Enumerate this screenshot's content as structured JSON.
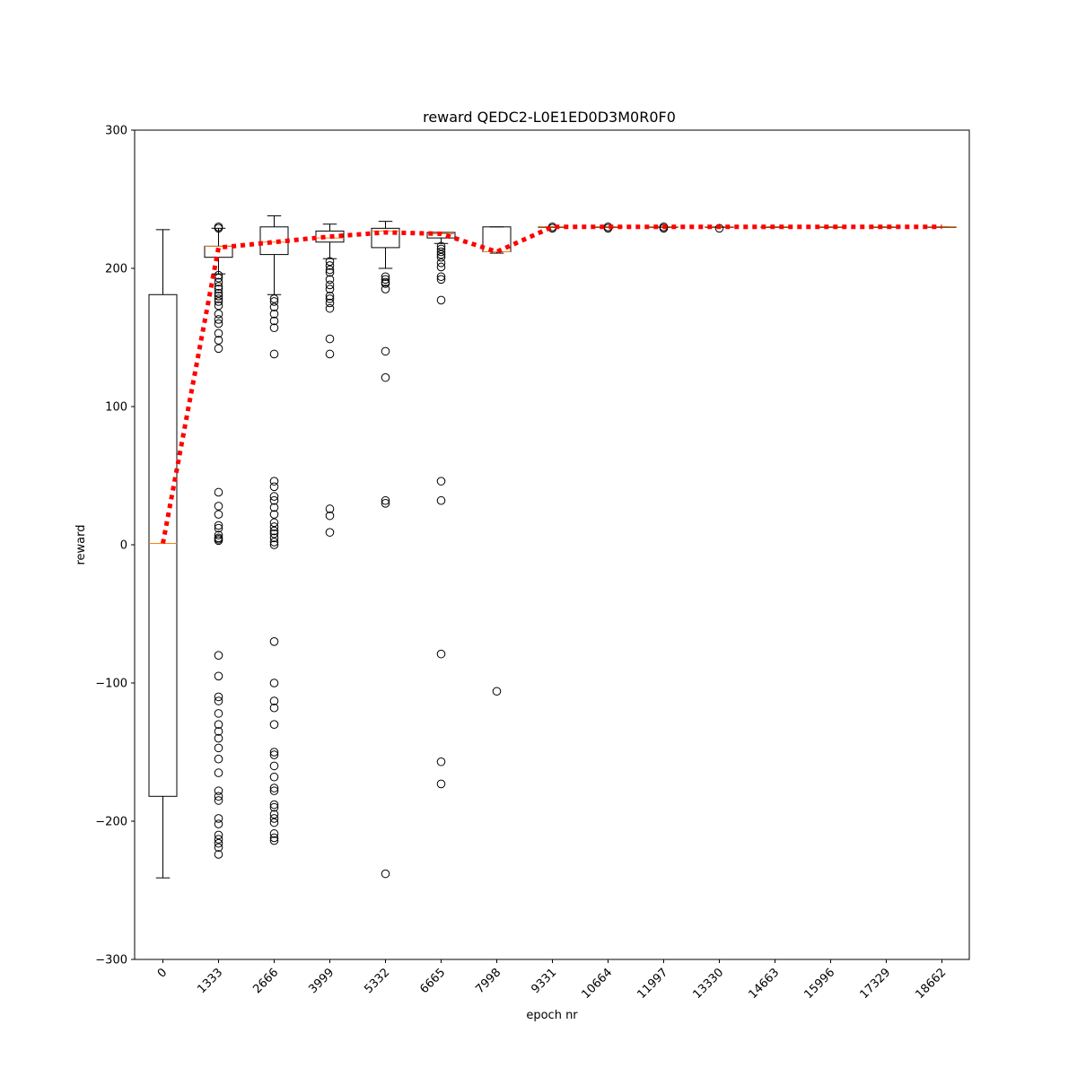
{
  "chart_data": {
    "type": "box",
    "title": "reward QEDC2-L0E1ED0D3M0R0F0",
    "xlabel": "epoch nr",
    "ylabel": "reward",
    "ylim": [
      -300,
      300
    ],
    "yticks": [
      -300,
      -200,
      -100,
      0,
      100,
      200,
      300
    ],
    "ytick_labels": [
      "−300",
      "−200",
      "−100",
      "0",
      "100",
      "200",
      "300"
    ],
    "grid": false,
    "categories": [
      "0",
      "1333",
      "2666",
      "3999",
      "5332",
      "6665",
      "7998",
      "9331",
      "10664",
      "11997",
      "13330",
      "14663",
      "15996",
      "17329",
      "18662"
    ],
    "boxes": [
      {
        "q1": -182,
        "median": 1,
        "q3": 181,
        "whisker_low": -241,
        "whisker_high": 228,
        "fliers": []
      },
      {
        "q1": 208,
        "median": 216,
        "q3": 216,
        "whisker_low": 196,
        "whisker_high": 229,
        "fliers": [
          230,
          229,
          195,
          193,
          190,
          187,
          185,
          182,
          180,
          178,
          176,
          173,
          167,
          163,
          160,
          153,
          148,
          142,
          38,
          28,
          22,
          14,
          12,
          7,
          5,
          4,
          3,
          -80,
          -95,
          -110,
          -113,
          -122,
          -130,
          -135,
          -140,
          -147,
          -155,
          -165,
          -178,
          -182,
          -185,
          -198,
          -202,
          -210,
          -213,
          -216,
          -219,
          -224
        ]
      },
      {
        "q1": 210,
        "median": 219,
        "q3": 230,
        "whisker_low": 181,
        "whisker_high": 238,
        "fliers": [
          178,
          176,
          172,
          167,
          162,
          157,
          138,
          46,
          42,
          35,
          32,
          27,
          22,
          16,
          13,
          10,
          8,
          5,
          2,
          0,
          -70,
          -100,
          -113,
          -118,
          -130,
          -150,
          -152,
          -160,
          -168,
          -176,
          -178,
          -188,
          -190,
          -195,
          -198,
          -201,
          -209,
          -212,
          -214
        ]
      },
      {
        "q1": 219,
        "median": 222,
        "q3": 227,
        "whisker_low": 207,
        "whisker_high": 232,
        "fliers": [
          205,
          202,
          199,
          197,
          192,
          188,
          185,
          180,
          178,
          175,
          171,
          149,
          138,
          26,
          21,
          9
        ]
      },
      {
        "q1": 215,
        "median": 227,
        "q3": 229,
        "whisker_low": 200,
        "whisker_high": 234,
        "fliers": [
          194,
          192,
          190,
          189,
          185,
          140,
          121,
          32,
          30,
          -238
        ]
      },
      {
        "q1": 222,
        "median": 225,
        "q3": 226,
        "whisker_low": 218,
        "whisker_high": 226,
        "fliers": [
          216,
          214,
          212,
          210,
          208,
          204,
          201,
          194,
          192,
          177,
          46,
          32,
          -79,
          -157,
          -173
        ]
      },
      {
        "q1": 212,
        "median": 212,
        "q3": 230,
        "whisker_low": 211,
        "whisker_high": 230,
        "fliers": [
          -106
        ]
      },
      {
        "q1": 230,
        "median": 230,
        "q3": 230,
        "whisker_low": 230,
        "whisker_high": 230,
        "fliers": [
          230,
          229
        ]
      },
      {
        "q1": 230,
        "median": 230,
        "q3": 230,
        "whisker_low": 230,
        "whisker_high": 230,
        "fliers": [
          230,
          229
        ]
      },
      {
        "q1": 230,
        "median": 230,
        "q3": 230,
        "whisker_low": 230,
        "whisker_high": 230,
        "fliers": [
          230,
          229
        ]
      },
      {
        "q1": 230,
        "median": 230,
        "q3": 230,
        "whisker_low": 230,
        "whisker_high": 230,
        "fliers": [
          229
        ]
      },
      {
        "q1": 230,
        "median": 230,
        "q3": 230,
        "whisker_low": 230,
        "whisker_high": 230,
        "fliers": []
      },
      {
        "q1": 230,
        "median": 230,
        "q3": 230,
        "whisker_low": 230,
        "whisker_high": 230,
        "fliers": []
      },
      {
        "q1": 230,
        "median": 230,
        "q3": 230,
        "whisker_low": 230,
        "whisker_high": 230,
        "fliers": []
      },
      {
        "q1": 230,
        "median": 230,
        "q3": 230,
        "whisker_low": 230,
        "whisker_high": 230,
        "fliers": []
      }
    ],
    "mean_line": {
      "values": [
        1,
        215,
        219,
        223,
        226,
        225,
        212,
        230,
        230,
        230,
        230,
        230,
        230,
        230,
        230
      ]
    },
    "colors": {
      "box": "#000000",
      "median": "#ff7f0e",
      "mean_line": "#ff0000",
      "flier": "#000000"
    }
  }
}
